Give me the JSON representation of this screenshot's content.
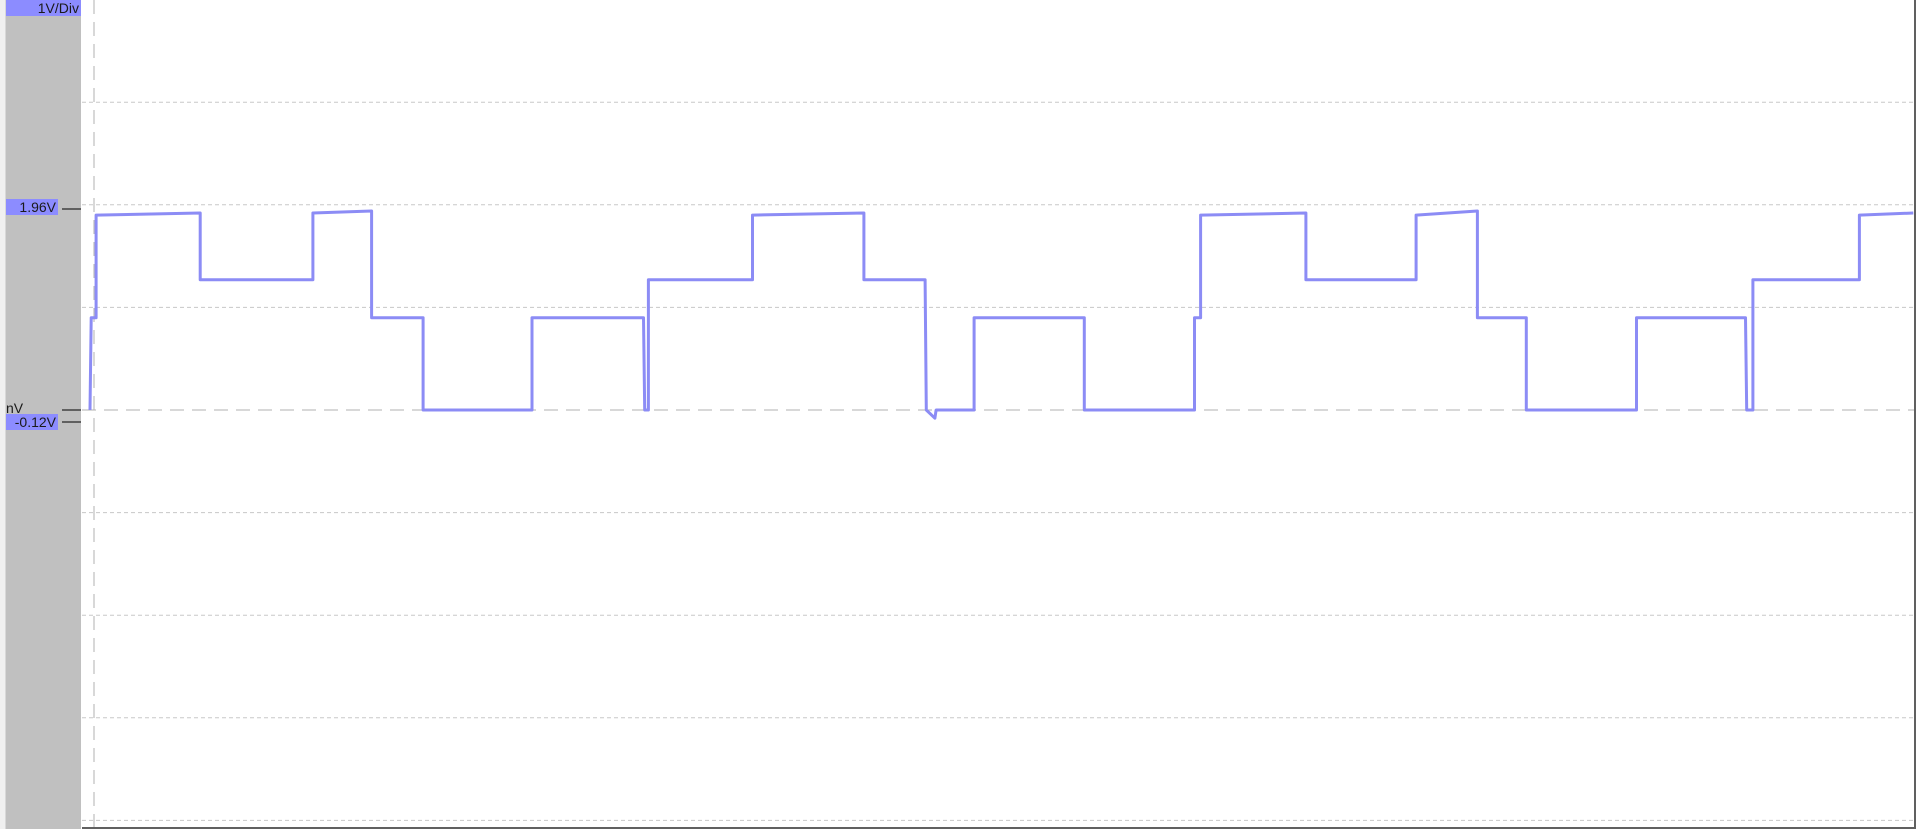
{
  "scale_label": "1V/Div",
  "markers": {
    "high": {
      "label": "1.96V",
      "value": 1.96
    },
    "ground": {
      "label": "nV",
      "value": 0
    },
    "low": {
      "label": "-0.12V",
      "value": -0.12
    }
  },
  "colors": {
    "trace": "#8c8cf5",
    "label_bg": "#8c8cff",
    "panel": "#c0c0c0",
    "grid": "#c8c8c8"
  },
  "chart_data": {
    "type": "line",
    "title": "",
    "xlabel": "",
    "ylabel": "",
    "volts_per_div": 1,
    "ylim": [
      -4,
      4
    ],
    "grid": true,
    "series": [
      {
        "points": [
          [
            0,
            0
          ],
          [
            1,
            0.9
          ],
          [
            5,
            0.9
          ],
          [
            5,
            1.9
          ],
          [
            90,
            1.92
          ],
          [
            90,
            1.27
          ],
          [
            182,
            1.27
          ],
          [
            182,
            1.92
          ],
          [
            230,
            1.94
          ],
          [
            230,
            0.9
          ],
          [
            272,
            0.9
          ],
          [
            272,
            0
          ],
          [
            361,
            0
          ],
          [
            361,
            0.9
          ],
          [
            452,
            0.9
          ],
          [
            453,
            0
          ],
          [
            456,
            0
          ],
          [
            456,
            1.27
          ],
          [
            541,
            1.27
          ],
          [
            541,
            1.9
          ],
          [
            632,
            1.92
          ],
          [
            632,
            1.27
          ],
          [
            682,
            1.27
          ],
          [
            683,
            0
          ],
          [
            690,
            -0.08
          ],
          [
            691,
            0
          ],
          [
            722,
            0
          ],
          [
            722,
            0.9
          ],
          [
            812,
            0.9
          ],
          [
            812,
            0
          ],
          [
            902,
            0
          ],
          [
            902,
            0.9
          ],
          [
            907,
            0.9
          ],
          [
            907,
            1.9
          ],
          [
            993,
            1.92
          ],
          [
            993,
            1.27
          ],
          [
            1083,
            1.27
          ],
          [
            1083,
            1.9
          ],
          [
            1133,
            1.94
          ],
          [
            1133,
            0.9
          ],
          [
            1173,
            0.9
          ],
          [
            1173,
            0
          ],
          [
            1263,
            0
          ],
          [
            1263,
            0.9
          ],
          [
            1352,
            0.9
          ],
          [
            1353,
            0
          ],
          [
            1358,
            0
          ],
          [
            1358,
            1.27
          ],
          [
            1445,
            1.27
          ],
          [
            1445,
            1.9
          ],
          [
            1489,
            1.92
          ]
        ]
      }
    ]
  }
}
